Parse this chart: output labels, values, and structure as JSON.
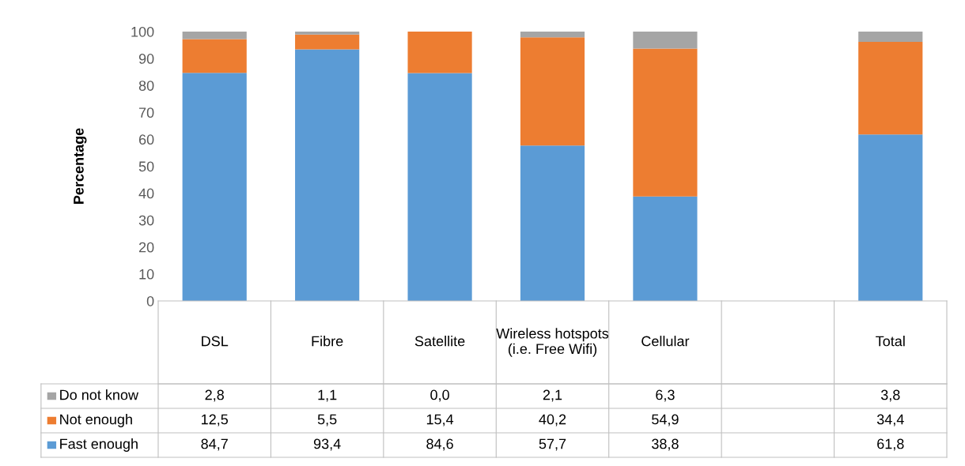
{
  "chart_data": {
    "type": "bar",
    "stacked": true,
    "ylabel": "Percentage",
    "categories": [
      "DSL",
      "Fibre",
      "Satellite",
      "Wireless hotspots (i.e. Free Wifi)",
      "Cellular",
      null,
      "Total"
    ],
    "series": [
      {
        "name": "Fast enough",
        "color": "#5b9bd5",
        "values": [
          84.7,
          93.4,
          84.6,
          57.7,
          38.8,
          null,
          61.8
        ],
        "value_labels": [
          "84,7",
          "93,4",
          "84,6",
          "57,7",
          "38,8",
          null,
          "61,8"
        ]
      },
      {
        "name": "Not enough",
        "color": "#ed7d31",
        "values": [
          12.5,
          5.5,
          15.4,
          40.2,
          54.9,
          null,
          34.4
        ],
        "value_labels": [
          "12,5",
          "5,5",
          "15,4",
          "40,2",
          "54,9",
          null,
          "34,4"
        ]
      },
      {
        "name": "Do not know",
        "color": "#a5a5a5",
        "values": [
          2.8,
          1.1,
          0.0,
          2.1,
          6.3,
          null,
          3.8
        ],
        "value_labels": [
          "2,8",
          "1,1",
          "0,0",
          "2,1",
          "6,3",
          null,
          "3,8"
        ]
      }
    ],
    "ylim": [
      0,
      100
    ],
    "yticks": [
      0,
      10,
      20,
      30,
      40,
      50,
      60,
      70,
      80,
      90,
      100
    ],
    "grid": false,
    "legend": "bottom left"
  }
}
